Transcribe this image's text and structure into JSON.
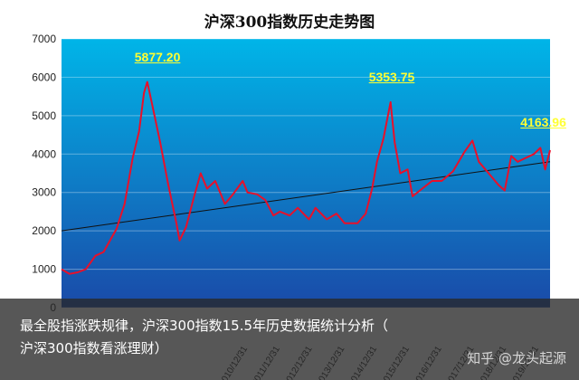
{
  "chart_data": {
    "type": "line",
    "title": "沪深300指数历史走势图",
    "xlabel": "",
    "ylabel": "",
    "ylim": [
      0,
      7000
    ],
    "yticks": [
      0,
      1000,
      2000,
      3000,
      4000,
      5000,
      6000,
      7000
    ],
    "xticks": [
      "2010/12/31",
      "2011/12/31",
      "2012/12/31",
      "2013/12/31",
      "2014/12/31",
      "2015/12/31",
      "2016/12/31",
      "2017/12/31",
      "2018/12/31",
      "2019/12/31"
    ],
    "grid": true,
    "series": [
      {
        "x": [
          2005.25,
          2005.5,
          2005.75,
          2006.0,
          2006.3,
          2006.55,
          2006.75,
          2006.95,
          2007.2,
          2007.45,
          2007.65,
          2007.8,
          2007.9,
          2008.05,
          2008.3,
          2008.55,
          2008.8,
          2008.9,
          2009.1,
          2009.35,
          2009.55,
          2009.75,
          2010.0,
          2010.3,
          2010.55,
          2010.85,
          2011.0,
          2011.3,
          2011.55,
          2011.8,
          2012.0,
          2012.3,
          2012.55,
          2012.9,
          2013.1,
          2013.45,
          2013.75,
          2014.0,
          2014.4,
          2014.65,
          2014.85,
          2015.0,
          2015.2,
          2015.42,
          2015.55,
          2015.72,
          2015.95,
          2016.1,
          2016.4,
          2016.7,
          2017.0,
          2017.35,
          2017.7,
          2017.95,
          2018.15,
          2018.45,
          2018.75,
          2018.95,
          2019.15,
          2019.35,
          2019.6,
          2019.85,
          2020.05,
          2020.2,
          2020.35
        ],
        "values": [
          1000,
          880,
          920,
          1000,
          1350,
          1450,
          1750,
          2050,
          2700,
          3900,
          4600,
          5600,
          5877,
          5300,
          4300,
          3200,
          2200,
          1750,
          2100,
          2900,
          3500,
          3100,
          3300,
          2700,
          2950,
          3300,
          3000,
          2950,
          2800,
          2400,
          2500,
          2400,
          2600,
          2300,
          2600,
          2300,
          2450,
          2200,
          2200,
          2450,
          3100,
          3800,
          4400,
          5353,
          4300,
          3500,
          3600,
          2900,
          3100,
          3300,
          3300,
          3550,
          4050,
          4350,
          3800,
          3500,
          3200,
          3050,
          3950,
          3800,
          3900,
          4000,
          4163,
          3600,
          4100
        ]
      }
    ],
    "trendline": {
      "start": [
        2005.25,
        2000
      ],
      "end": [
        2020.35,
        3800
      ]
    },
    "annotations": [
      {
        "label": "5877.20",
        "x": 2007.9,
        "y": 5877
      },
      {
        "label": "5353.75",
        "x": 2015.42,
        "y": 5353
      },
      {
        "label": "4163.96",
        "x": 2020.05,
        "y": 4163
      }
    ],
    "colors": {
      "line": "#e8102a",
      "trend": "#111111",
      "label": "#ffff33",
      "plot_top": "#00b5e8",
      "plot_bottom": "#1a4aa8"
    }
  },
  "caption": {
    "line1": "最全股指涨跌规律，沪深300指数15.5年历史数据统计分析（",
    "line2": "沪深300指数看涨理财）"
  },
  "watermark": "知乎 @龙头起源"
}
